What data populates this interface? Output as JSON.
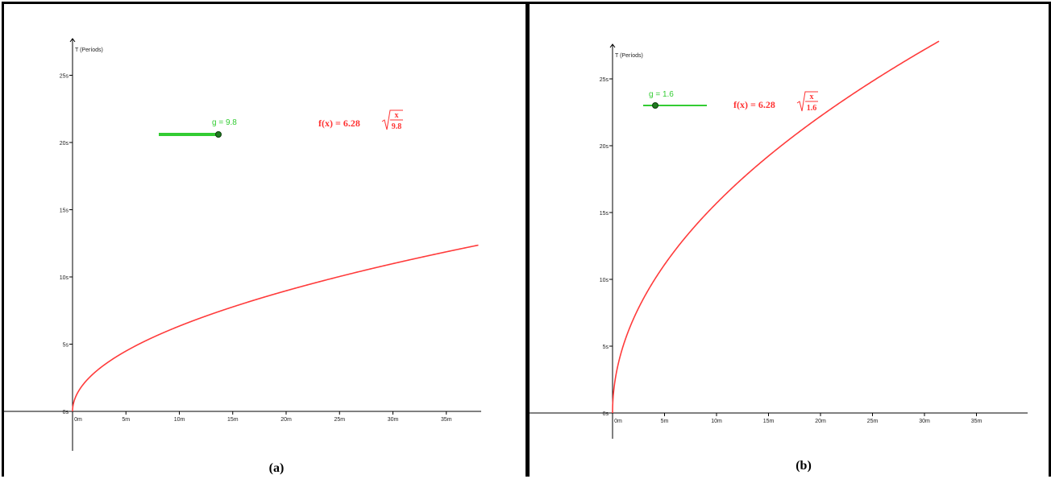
{
  "chart_data": [
    {
      "type": "line",
      "panel": "a",
      "caption": "(a)",
      "ylabel": "T (Períods)",
      "x_ticks": [
        "0m",
        "5m",
        "10m",
        "15m",
        "20m",
        "25m",
        "30m",
        "35m"
      ],
      "y_ticks": [
        "0s",
        "5s",
        "10s",
        "15s",
        "20s",
        "25s"
      ],
      "xlim": [
        0,
        38
      ],
      "ylim": [
        0,
        28
      ],
      "slider": {
        "label": "g = 9.8",
        "value": 9.8,
        "color": "#33cc33"
      },
      "formula": {
        "lhs": "f(x) = 6.28",
        "numerator": "x",
        "denominator": "9.8",
        "color": "#ff3333"
      },
      "series": [
        {
          "function": "6.28*sqrt(x/9.8)",
          "g": 9.8,
          "x": [
            0,
            5,
            10,
            15,
            20,
            25,
            30,
            35,
            38
          ],
          "values": [
            0,
            4.49,
            6.34,
            7.77,
            8.97,
            10.03,
            10.99,
            11.87,
            12.37
          ]
        }
      ]
    },
    {
      "type": "line",
      "panel": "b",
      "caption": "(b)",
      "ylabel": "T (Períods)",
      "x_ticks": [
        "0m",
        "5m",
        "10m",
        "15m",
        "20m",
        "25m",
        "30m",
        "35m"
      ],
      "y_ticks": [
        "0s",
        "5s",
        "10s",
        "15s",
        "20s",
        "25s"
      ],
      "xlim": [
        0,
        39
      ],
      "ylim": [
        0,
        27
      ],
      "slider": {
        "label": "g = 1.6",
        "value": 1.6,
        "color": "#33cc33"
      },
      "formula": {
        "lhs": "f(x) = 6.28",
        "numerator": "x",
        "denominator": "1.6",
        "color": "#ff3333"
      },
      "series": [
        {
          "function": "6.28*sqrt(x/1.6)",
          "g": 1.6,
          "x": [
            0,
            5,
            10,
            15,
            20,
            25,
            30,
            31.4
          ],
          "values": [
            0,
            11.1,
            15.7,
            19.23,
            22.2,
            24.82,
            27.19,
            27.82
          ]
        }
      ]
    }
  ]
}
